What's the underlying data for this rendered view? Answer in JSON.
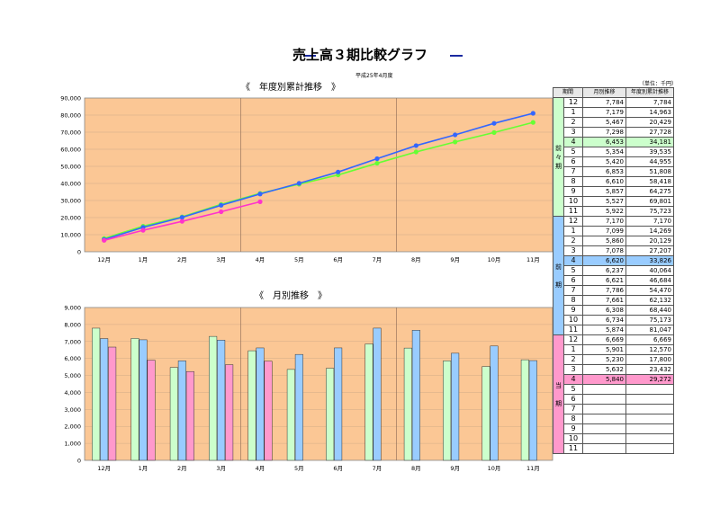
{
  "header": {
    "title": "売上高３期比較グラフ",
    "date": "平成25年4月度",
    "unit": "（単位：千円）"
  },
  "colors": {
    "plot_bg": "#fbc795",
    "series_zenzen": "#66ff33",
    "series_zen": "#3366ff",
    "series_tou": "#ff33cc",
    "bar_zenzen": "#ccffcc",
    "bar_zen": "#99ccff",
    "bar_tou": "#ff99cc",
    "period_zenzen": "#ccffcc",
    "period_zen": "#99ccff",
    "period_tou": "#ff99cc",
    "highlight_zenzen": "#ccffcc",
    "highlight_zen": "#99ccff",
    "highlight_tou": "#ff99cc"
  },
  "chart_data": [
    {
      "type": "line",
      "title": "《　年度別累計推移　》",
      "categories": [
        "12月",
        "1月",
        "2月",
        "3月",
        "4月",
        "5月",
        "6月",
        "7月",
        "8月",
        "9月",
        "10月",
        "11月"
      ],
      "ylim": [
        0,
        90000
      ],
      "yticks": [
        "0",
        "10,000",
        "20,000",
        "30,000",
        "40,000",
        "50,000",
        "60,000",
        "70,000",
        "80,000",
        "90,000"
      ],
      "series": [
        {
          "key": "zenzen",
          "values": [
            7784,
            14963,
            20429,
            27728,
            34181,
            39535,
            44955,
            51808,
            58418,
            64275,
            69801,
            75723
          ]
        },
        {
          "key": "zen",
          "values": [
            7170,
            14269,
            20129,
            27207,
            33826,
            40064,
            46684,
            54470,
            62132,
            68440,
            75173,
            81047
          ]
        },
        {
          "key": "tou",
          "values": [
            6669,
            12570,
            17800,
            23432,
            29272,
            null,
            null,
            null,
            null,
            null,
            null,
            null
          ]
        }
      ]
    },
    {
      "type": "bar",
      "title": "《　月別推移　》",
      "categories": [
        "12月",
        "1月",
        "2月",
        "3月",
        "4月",
        "5月",
        "6月",
        "7月",
        "8月",
        "9月",
        "10月",
        "11月"
      ],
      "ylim": [
        0,
        9000
      ],
      "yticks": [
        "0",
        "1,000",
        "2,000",
        "3,000",
        "4,000",
        "5,000",
        "6,000",
        "7,000",
        "8,000",
        "9,000"
      ],
      "series": [
        {
          "key": "zenzen",
          "values": [
            7784,
            7179,
            5467,
            7298,
            6453,
            5354,
            5420,
            6853,
            6610,
            5857,
            5527,
            5922
          ]
        },
        {
          "key": "zen",
          "values": [
            7170,
            7099,
            5860,
            7078,
            6620,
            6237,
            6621,
            7786,
            7661,
            6308,
            6734,
            5874
          ]
        },
        {
          "key": "tou",
          "values": [
            6669,
            5901,
            5230,
            5632,
            5840,
            null,
            null,
            null,
            null,
            null,
            null,
            null
          ]
        }
      ]
    }
  ],
  "table": {
    "headers": [
      "期間",
      "月別推移",
      "年度別累計推移"
    ],
    "groups": [
      {
        "key": "zenzen",
        "label": "前\n々\n期",
        "rows": [
          [
            "12",
            "7,784",
            "7,784"
          ],
          [
            "1",
            "7,179",
            "14,963"
          ],
          [
            "2",
            "5,467",
            "20,429"
          ],
          [
            "3",
            "7,298",
            "27,728"
          ],
          [
            "4",
            "6,453",
            "34,181"
          ],
          [
            "5",
            "5,354",
            "39,535"
          ],
          [
            "6",
            "5,420",
            "44,955"
          ],
          [
            "7",
            "6,853",
            "51,808"
          ],
          [
            "8",
            "6,610",
            "58,418"
          ],
          [
            "9",
            "5,857",
            "64,275"
          ],
          [
            "10",
            "5,527",
            "69,801"
          ],
          [
            "11",
            "5,922",
            "75,723"
          ]
        ]
      },
      {
        "key": "zen",
        "label": "前\n\n期",
        "rows": [
          [
            "12",
            "7,170",
            "7,170"
          ],
          [
            "1",
            "7,099",
            "14,269"
          ],
          [
            "2",
            "5,860",
            "20,129"
          ],
          [
            "3",
            "7,078",
            "27,207"
          ],
          [
            "4",
            "6,620",
            "33,826"
          ],
          [
            "5",
            "6,237",
            "40,064"
          ],
          [
            "6",
            "6,621",
            "46,684"
          ],
          [
            "7",
            "7,786",
            "54,470"
          ],
          [
            "8",
            "7,661",
            "62,132"
          ],
          [
            "9",
            "6,308",
            "68,440"
          ],
          [
            "10",
            "6,734",
            "75,173"
          ],
          [
            "11",
            "5,874",
            "81,047"
          ]
        ]
      },
      {
        "key": "tou",
        "label": "当\n\n期",
        "rows": [
          [
            "12",
            "6,669",
            "6,669"
          ],
          [
            "1",
            "5,901",
            "12,570"
          ],
          [
            "2",
            "5,230",
            "17,800"
          ],
          [
            "3",
            "5,632",
            "23,432"
          ],
          [
            "4",
            "5,840",
            "29,272"
          ],
          [
            "5",
            "",
            ""
          ],
          [
            "6",
            "",
            ""
          ],
          [
            "7",
            "",
            ""
          ],
          [
            "8",
            "",
            ""
          ],
          [
            "9",
            "",
            ""
          ],
          [
            "10",
            "",
            ""
          ],
          [
            "11",
            "",
            ""
          ]
        ]
      }
    ],
    "highlight_month": "4"
  }
}
